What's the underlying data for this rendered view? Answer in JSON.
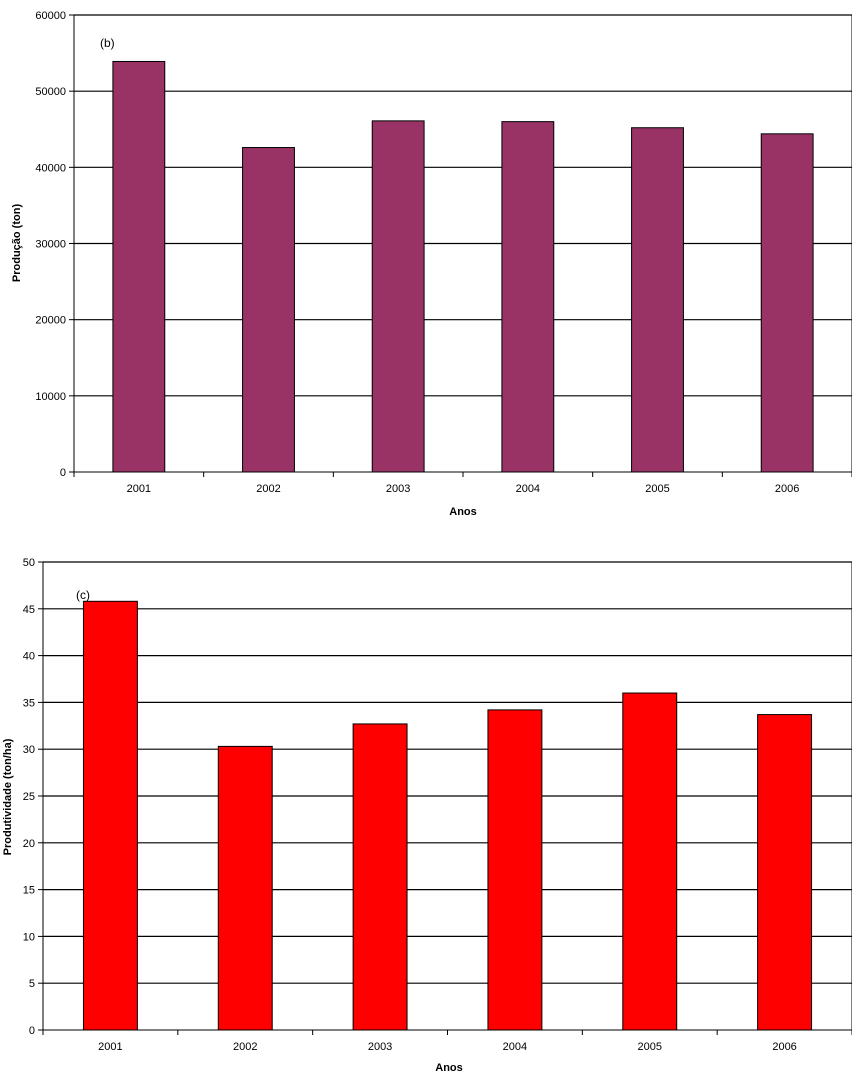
{
  "chart_data": [
    {
      "type": "bar",
      "panel_label": "(b)",
      "categories": [
        "2001",
        "2002",
        "2003",
        "2004",
        "2005",
        "2006"
      ],
      "values": [
        53900,
        42600,
        46100,
        46000,
        45200,
        44400
      ],
      "xlabel": "Anos",
      "ylabel": "Produção (ton)",
      "ylim": [
        0,
        60000
      ],
      "yticks": [
        0,
        10000,
        20000,
        30000,
        40000,
        50000,
        60000
      ],
      "grid": true,
      "legend": "none",
      "bar_color": "#993366"
    },
    {
      "type": "bar",
      "panel_label": "(c)",
      "categories": [
        "2001",
        "2002",
        "2003",
        "2004",
        "2005",
        "2006"
      ],
      "values": [
        45.8,
        30.3,
        32.7,
        34.2,
        36.0,
        33.7
      ],
      "xlabel": "Anos",
      "ylabel": "Produtividade (ton/ha)",
      "ylim": [
        0,
        50
      ],
      "yticks": [
        0,
        5,
        10,
        15,
        20,
        25,
        30,
        35,
        40,
        45,
        50
      ],
      "grid": true,
      "legend": "none",
      "bar_color": "#ff0000"
    }
  ]
}
